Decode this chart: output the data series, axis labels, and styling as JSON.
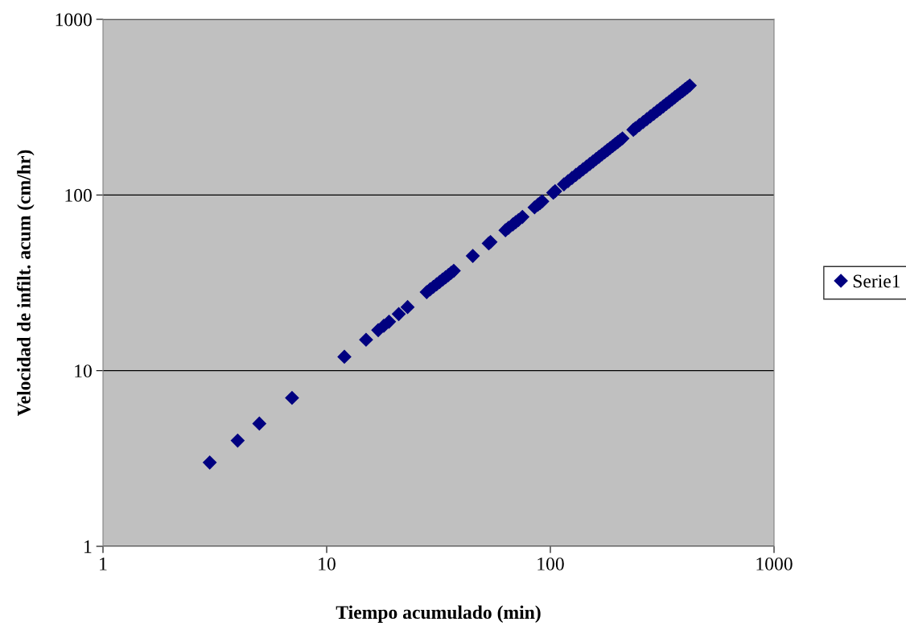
{
  "chart_data": {
    "type": "scatter",
    "xlabel": "Tiempo acumulado (min)",
    "ylabel": "Velocidad de infilt. acum (cm/hr)",
    "log": "xy",
    "xlim": [
      1,
      1000
    ],
    "ylim": [
      1,
      1000
    ],
    "xticks": [
      1,
      10,
      100,
      1000
    ],
    "yticks": [
      1,
      10,
      100,
      1000
    ],
    "grid": "y",
    "legend": "right",
    "marker": "diamond",
    "series": [
      {
        "name": "Serie1",
        "color": "#000080",
        "x": [
          3,
          4,
          5,
          7,
          12,
          15,
          17,
          18,
          19,
          21,
          23,
          28,
          29,
          30,
          31,
          32,
          33,
          34,
          35,
          36,
          37,
          45,
          53,
          54,
          63,
          65,
          68,
          70,
          72,
          75,
          85,
          88,
          90,
          92,
          103,
          105,
          115,
          120,
          125,
          130,
          135,
          140,
          145,
          150,
          155,
          160,
          165,
          170,
          175,
          180,
          185,
          190,
          195,
          200,
          205,
          210,
          235,
          240,
          250,
          260,
          270,
          280,
          290,
          300,
          310,
          320,
          330,
          340,
          350,
          360,
          370,
          380,
          390,
          400,
          410,
          420
        ],
        "values": [
          3,
          4,
          5,
          7,
          12,
          15,
          17,
          18,
          19,
          21,
          23,
          28,
          29,
          30,
          31,
          32,
          33,
          34,
          35,
          36,
          37,
          45,
          53,
          54,
          63,
          65,
          68,
          70,
          72,
          75,
          85,
          88,
          90,
          92,
          103,
          105,
          115,
          120,
          125,
          130,
          135,
          140,
          145,
          150,
          155,
          160,
          165,
          170,
          175,
          180,
          185,
          190,
          195,
          200,
          205,
          210,
          235,
          240,
          250,
          260,
          270,
          280,
          290,
          300,
          310,
          320,
          330,
          340,
          350,
          360,
          370,
          380,
          390,
          400,
          410,
          420
        ]
      }
    ]
  }
}
